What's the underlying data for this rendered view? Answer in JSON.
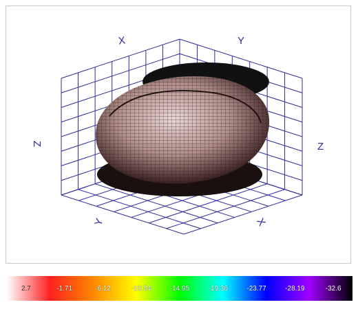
{
  "chart_data": {
    "type": "3d-surface",
    "axes": {
      "x_label": "X",
      "y_label": "Y",
      "z_label_left": "Z",
      "z_label_right": "Z",
      "bottom_left_label": "Y",
      "bottom_right_label": "X"
    },
    "grid": true,
    "grid_color": "#2b2b9a",
    "surface_color": "#6a4a4a",
    "colorbar": {
      "ticks": [
        "2.7",
        "-1.71",
        "-6.12",
        "-10.54",
        "-14.95",
        "-19.36",
        "-23.77",
        "-28.19",
        "-32.6"
      ],
      "colors": [
        "#ffffff",
        "#ff2020",
        "#ff8800",
        "#ffff00",
        "#00ff00",
        "#00ffff",
        "#0000ff",
        "#a000ff",
        "#000000"
      ]
    }
  }
}
